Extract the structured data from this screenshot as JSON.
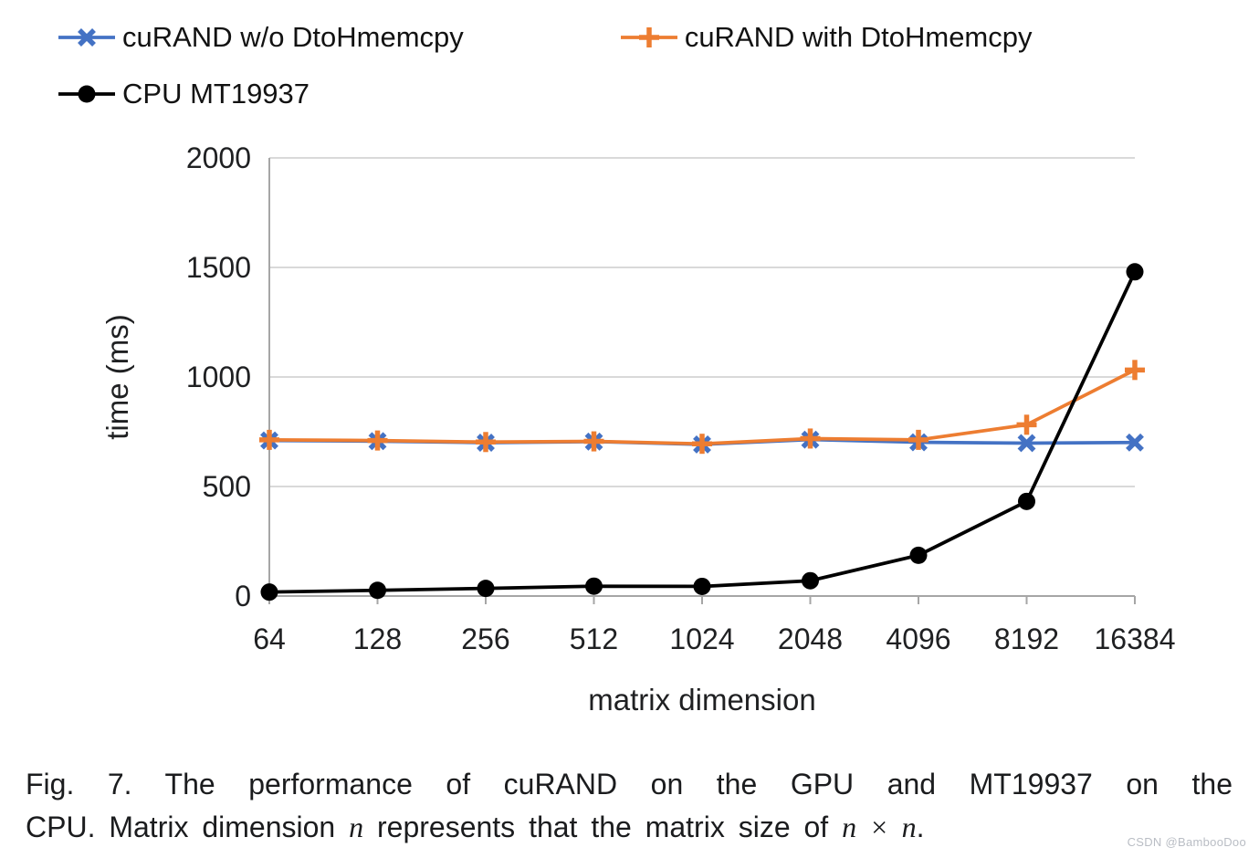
{
  "chart_data": {
    "type": "line",
    "categories": [
      "64",
      "128",
      "256",
      "512",
      "1024",
      "2048",
      "4096",
      "8192",
      "16384"
    ],
    "series": [
      {
        "name": "cuRAND w/o DtoHmemcpy",
        "color": "#4472C4",
        "marker": "x",
        "values": [
          710,
          707,
          700,
          705,
          692,
          714,
          702,
          698,
          701
        ]
      },
      {
        "name": "cuRAND with DtoHmemcpy",
        "color": "#ED7D31",
        "marker": "plus",
        "values": [
          713,
          710,
          703,
          706,
          695,
          719,
          713,
          782,
          1032
        ]
      },
      {
        "name": "CPU MT19937",
        "color": "#000000",
        "marker": "circle",
        "values": [
          18,
          26,
          35,
          45,
          44,
          70,
          186,
          432,
          1480
        ]
      }
    ],
    "xlabel": "matrix dimension",
    "ylabel": "time (ms)",
    "ylim": [
      0,
      2000
    ],
    "yticks": [
      0,
      500,
      1000,
      1500,
      2000
    ],
    "grid": true,
    "legend_position": "top-left",
    "colors": {
      "gridline": "#d9d9d9",
      "axis": "#a6a6a6",
      "tick_text": "#1f2022"
    }
  },
  "caption": {
    "line1": "Fig. 7.  The performance of cuRAND on the GPU and MT19937 on the",
    "line2_pre": "CPU. Matrix dimension ",
    "line2_math1": "n",
    "line2_mid": " represents that the matrix size of ",
    "line2_math2": "n × n",
    "line2_end": "."
  },
  "watermark": "CSDN @BambooDoo"
}
